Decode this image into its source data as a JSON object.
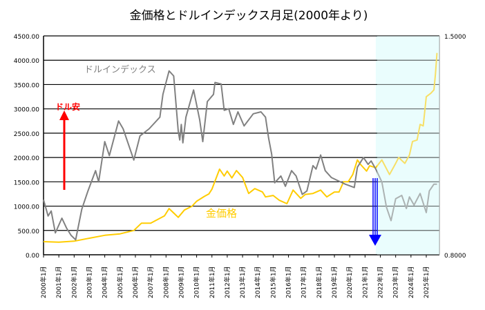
{
  "chart_data": {
    "type": "line",
    "title": "金価格とドルインデックス月足(2000年より)",
    "xlabel": "",
    "ylabel": "",
    "x_range": [
      2000.0,
      2025.9
    ],
    "ylim": [
      0,
      4500
    ],
    "y2lim": [
      0.8,
      1.5
    ],
    "y_ticks": [
      "0.00",
      "500.00",
      "1000.00",
      "1500.00",
      "2000.00",
      "2500.00",
      "3000.00",
      "3500.00",
      "4000.00",
      "4500.00"
    ],
    "y2_ticks": [
      "0.8000",
      "1.5000"
    ],
    "x_ticks": [
      "2000年1月",
      "2001年1月",
      "2002年1月",
      "2003年1月",
      "2004年1月",
      "2005年1月",
      "2006年1月",
      "2007年1月",
      "2008年1月",
      "2009年1月",
      "2010年1月",
      "2011年1月",
      "2012年1月",
      "2013年1月",
      "2014年1月",
      "2015年1月",
      "2016年1月",
      "2017年1月",
      "2018年1月",
      "2019年1月",
      "2020年1月",
      "2021年1月",
      "2022年1月",
      "2023年1月",
      "2024年1月",
      "2025年1月"
    ],
    "grid": true,
    "highlight_start": 2021.7,
    "series": [
      {
        "name": "金価格",
        "axis": "left",
        "color": "#ffcc00",
        "x": [
          2000.0,
          2001.0,
          2002.0,
          2003.0,
          2004.0,
          2005.0,
          2005.9,
          2006.4,
          2007.0,
          2007.9,
          2008.2,
          2008.8,
          2009.2,
          2009.7,
          2010.0,
          2010.5,
          2010.8,
          2011.0,
          2011.5,
          2011.8,
          2012.0,
          2012.3,
          2012.6,
          2013.0,
          2013.4,
          2013.8,
          2014.3,
          2014.5,
          2015.0,
          2015.4,
          2015.9,
          2016.3,
          2016.8,
          2017.1,
          2017.6,
          2018.1,
          2018.5,
          2019.0,
          2019.3,
          2019.6,
          2019.9,
          2020.2,
          2020.5,
          2020.7,
          2021.1,
          2021.3,
          2021.7,
          2022.1,
          2022.6,
          2023.0,
          2023.2,
          2023.6,
          2023.9,
          2024.1,
          2024.4,
          2024.6,
          2024.8,
          2025.0,
          2025.3,
          2025.5,
          2025.6,
          2025.7
        ],
        "values": [
          270,
          260,
          280,
          340,
          400,
          430,
          500,
          650,
          650,
          800,
          950,
          770,
          920,
          1000,
          1100,
          1200,
          1250,
          1350,
          1760,
          1620,
          1720,
          1580,
          1730,
          1590,
          1260,
          1360,
          1290,
          1190,
          1220,
          1120,
          1050,
          1330,
          1160,
          1240,
          1260,
          1330,
          1190,
          1290,
          1290,
          1500,
          1500,
          1650,
          1950,
          1860,
          1720,
          1830,
          1790,
          1950,
          1650,
          1880,
          2000,
          1880,
          2050,
          2330,
          2360,
          2680,
          2650,
          3250,
          3320,
          3390,
          3720,
          4150
        ]
      },
      {
        "name": "ドルインデックス",
        "axis": "right",
        "color": "#808080",
        "x": [
          2000.0,
          2000.3,
          2000.5,
          2000.77,
          2001.2,
          2001.5,
          2001.8,
          2002.1,
          2002.5,
          2002.9,
          2003.4,
          2003.6,
          2004.0,
          2004.3,
          2004.9,
          2005.2,
          2005.9,
          2006.3,
          2006.9,
          2007.6,
          2007.8,
          2008.2,
          2008.5,
          2008.8,
          2008.9,
          2009.0,
          2009.1,
          2009.3,
          2009.8,
          2010.2,
          2010.4,
          2010.7,
          2011.1,
          2011.2,
          2011.6,
          2011.8,
          2012.1,
          2012.4,
          2012.7,
          2013.1,
          2013.7,
          2014.2,
          2014.5,
          2014.7,
          2014.9,
          2015.1,
          2015.5,
          2015.8,
          2016.2,
          2016.5,
          2016.9,
          2017.2,
          2017.6,
          2017.8,
          2018.1,
          2018.4,
          2018.8,
          2019.4,
          2019.7,
          2020.3,
          2020.5,
          2020.9,
          2021.2,
          2021.4,
          2021.7,
          2022.1,
          2022.4,
          2022.7,
          2023.0,
          2023.4,
          2023.7,
          2023.9,
          2024.2,
          2024.6,
          2025.0,
          2025.2,
          2025.5,
          2025.7
        ],
        "values": [
          0.976,
          0.924,
          0.94,
          0.87,
          0.917,
          0.886,
          0.862,
          0.848,
          0.946,
          1.004,
          1.069,
          1.033,
          1.162,
          1.117,
          1.228,
          1.203,
          1.103,
          1.18,
          1.203,
          1.24,
          1.313,
          1.388,
          1.372,
          1.195,
          1.167,
          1.217,
          1.158,
          1.24,
          1.327,
          1.232,
          1.162,
          1.29,
          1.313,
          1.351,
          1.346,
          1.262,
          1.267,
          1.217,
          1.257,
          1.212,
          1.251,
          1.257,
          1.24,
          1.173,
          1.122,
          1.03,
          1.052,
          1.019,
          1.069,
          1.052,
          0.993,
          1.004,
          1.085,
          1.074,
          1.119,
          1.069,
          1.047,
          1.033,
          1.026,
          1.015,
          1.08,
          1.111,
          1.089,
          1.1,
          1.074,
          1.033,
          0.952,
          0.909,
          0.979,
          0.99,
          0.948,
          0.985,
          0.959,
          0.996,
          0.935,
          1.004,
          1.026,
          1.026
        ]
      }
    ],
    "annotations": {
      "index_label": "ドルインデックス",
      "gold_label": "金価格",
      "dollar_weak": "ドル安"
    }
  }
}
